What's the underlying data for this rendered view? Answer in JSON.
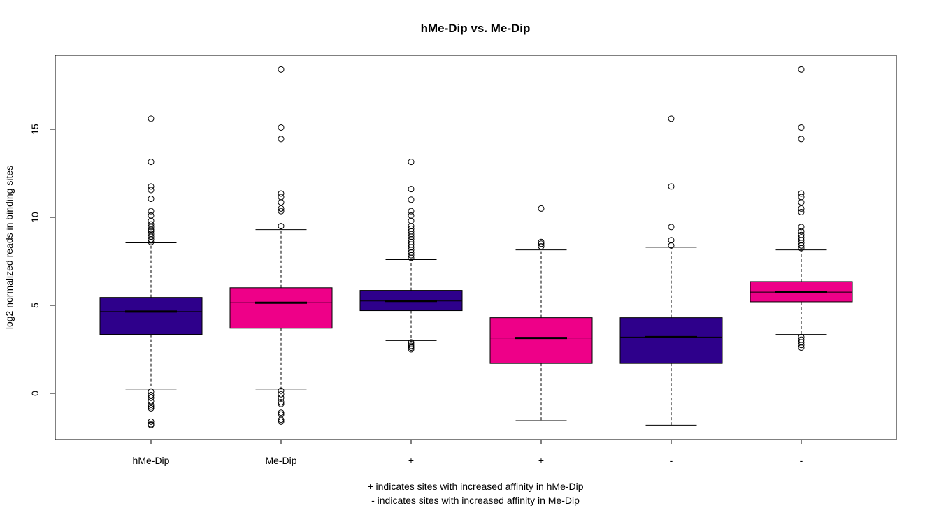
{
  "chart_data": {
    "type": "boxplot",
    "title": "hMe-Dip vs. Me-Dip",
    "ylabel": "log2 normalized reads in binding sites",
    "xlabel_lines": [
      "+ indicates sites with increased affinity in hMe-Dip",
      "- indicates sites with increased affinity in Me-Dip"
    ],
    "ylim": [
      -2.6,
      19.2
    ],
    "yticks": [
      0,
      5,
      10,
      15
    ],
    "grid": false,
    "colors": {
      "hMe-Dip": "#2E008B",
      "Me-Dip": "#EE0088"
    },
    "boxes": [
      {
        "label": "hMe-Dip",
        "group": "hMe-Dip",
        "whisker_low": 0.25,
        "q1": 3.35,
        "median": 4.65,
        "q3": 5.45,
        "whisker_high": 8.55,
        "outliers_high": [
          8.6,
          8.75,
          8.9,
          9.05,
          9.2,
          9.3,
          9.45,
          9.6,
          9.8,
          10.1,
          10.35,
          11.05,
          11.55,
          11.75,
          13.15,
          15.6
        ],
        "outliers_low": [
          0.1,
          -0.1,
          -0.25,
          -0.45,
          -0.65,
          -0.75,
          -0.85,
          -1.6,
          -1.75,
          -1.8
        ]
      },
      {
        "label": "Me-Dip",
        "group": "Me-Dip",
        "whisker_low": 0.25,
        "q1": 3.7,
        "median": 5.15,
        "q3": 6.0,
        "whisker_high": 9.3,
        "outliers_high": [
          9.5,
          10.35,
          10.5,
          10.85,
          11.15,
          11.35,
          14.45,
          15.1,
          18.4
        ],
        "outliers_low": [
          0.15,
          -0.05,
          -0.25,
          -0.5,
          -0.6,
          -1.1,
          -1.2,
          -1.5,
          -1.6
        ]
      },
      {
        "label": "+",
        "group": "hMe-Dip",
        "whisker_low": 3.0,
        "q1": 4.7,
        "median": 5.25,
        "q3": 5.85,
        "whisker_high": 7.6,
        "outliers_high": [
          7.7,
          7.85,
          8.0,
          8.15,
          8.3,
          8.45,
          8.6,
          8.75,
          8.9,
          9.05,
          9.2,
          9.35,
          9.5,
          9.8,
          10.1,
          10.35,
          11.0,
          11.6,
          13.15
        ],
        "outliers_low": [
          2.9,
          2.8,
          2.7,
          2.6,
          2.5
        ]
      },
      {
        "label": "+",
        "group": "Me-Dip",
        "whisker_low": -1.55,
        "q1": 1.7,
        "median": 3.15,
        "q3": 4.3,
        "whisker_high": 8.15,
        "outliers_high": [
          8.35,
          8.5,
          8.6,
          10.5
        ],
        "outliers_low": []
      },
      {
        "label": "-",
        "group": "hMe-Dip",
        "whisker_low": -1.8,
        "q1": 1.7,
        "median": 3.2,
        "q3": 4.3,
        "whisker_high": 8.3,
        "outliers_high": [
          8.4,
          8.7,
          9.45,
          11.75,
          15.6
        ],
        "outliers_low": []
      },
      {
        "label": "-",
        "group": "Me-Dip",
        "whisker_low": 3.35,
        "q1": 5.2,
        "median": 5.75,
        "q3": 6.35,
        "whisker_high": 8.15,
        "outliers_high": [
          8.25,
          8.4,
          8.55,
          8.7,
          8.85,
          9.0,
          9.2,
          9.45,
          10.3,
          10.5,
          10.85,
          11.15,
          11.35,
          14.45,
          15.1,
          18.4
        ],
        "outliers_low": [
          3.2,
          3.05,
          2.9,
          2.75,
          2.6
        ]
      }
    ]
  }
}
